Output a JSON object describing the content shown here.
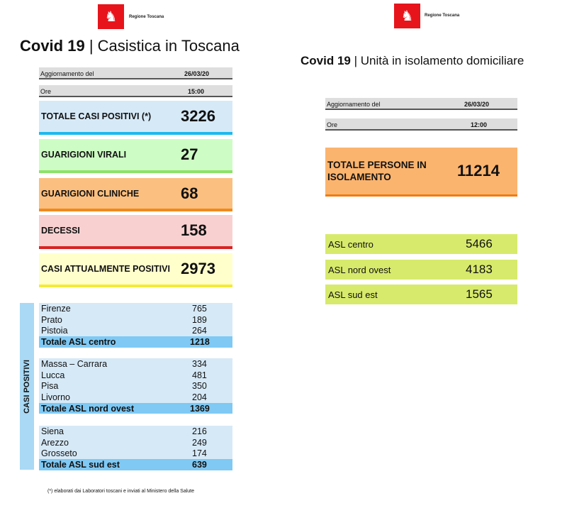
{
  "logo_text": "Regione Toscana",
  "left": {
    "title_bold": "Covid 19",
    "title_sep": "|",
    "title_rest": "Casistica in Toscana",
    "update_label": "Aggiornamento del",
    "update_value": "26/03/20",
    "time_label": "Ore",
    "time_value": "15:00",
    "boxes": [
      {
        "label": "TOTALE CASI POSITIVI (*)",
        "value": "3226"
      },
      {
        "label": "GUARIGIONI VIRALI",
        "value": "27"
      },
      {
        "label": "GUARIGIONI CLINICHE",
        "value": "68"
      },
      {
        "label": "DECESSI",
        "value": "158"
      },
      {
        "label": "CASI ATTUALMENTE POSITIVI",
        "value": "2973"
      }
    ],
    "side_label": "CASI POSITIVI",
    "groups": [
      {
        "rows": [
          [
            "Firenze",
            "765"
          ],
          [
            "Prato",
            "189"
          ],
          [
            "Pistoia",
            "264"
          ]
        ],
        "total": [
          "Totale ASL centro",
          "1218"
        ]
      },
      {
        "rows": [
          [
            "Massa – Carrara",
            "334"
          ],
          [
            "Lucca",
            "481"
          ],
          [
            "Pisa",
            "350"
          ],
          [
            "Livorno",
            "204"
          ]
        ],
        "total": [
          "Totale ASL nord ovest",
          "1369"
        ]
      },
      {
        "rows": [
          [
            "Siena",
            "216"
          ],
          [
            "Arezzo",
            "249"
          ],
          [
            "Grosseto",
            "174"
          ]
        ],
        "total": [
          "Totale ASL sud est",
          "639"
        ]
      }
    ],
    "footnote": "(*) elaborati dai Laboratori toscani e inviati al Ministero della Salute"
  },
  "right": {
    "title_bold": "Covid 19",
    "title_sep": "|",
    "title_rest": "Unità in isolamento domiciliare",
    "update_label": "Aggiornamento del",
    "update_value": "26/03/20",
    "time_label": "Ore",
    "time_value": "12:00",
    "total_label": "TOTALE PERSONE IN ISOLAMENTO",
    "total_value": "11214",
    "asl": [
      {
        "label": "ASL centro",
        "value": "5466"
      },
      {
        "label": "ASL nord ovest",
        "value": "4183"
      },
      {
        "label": "ASL sud est",
        "value": "1565"
      }
    ]
  }
}
